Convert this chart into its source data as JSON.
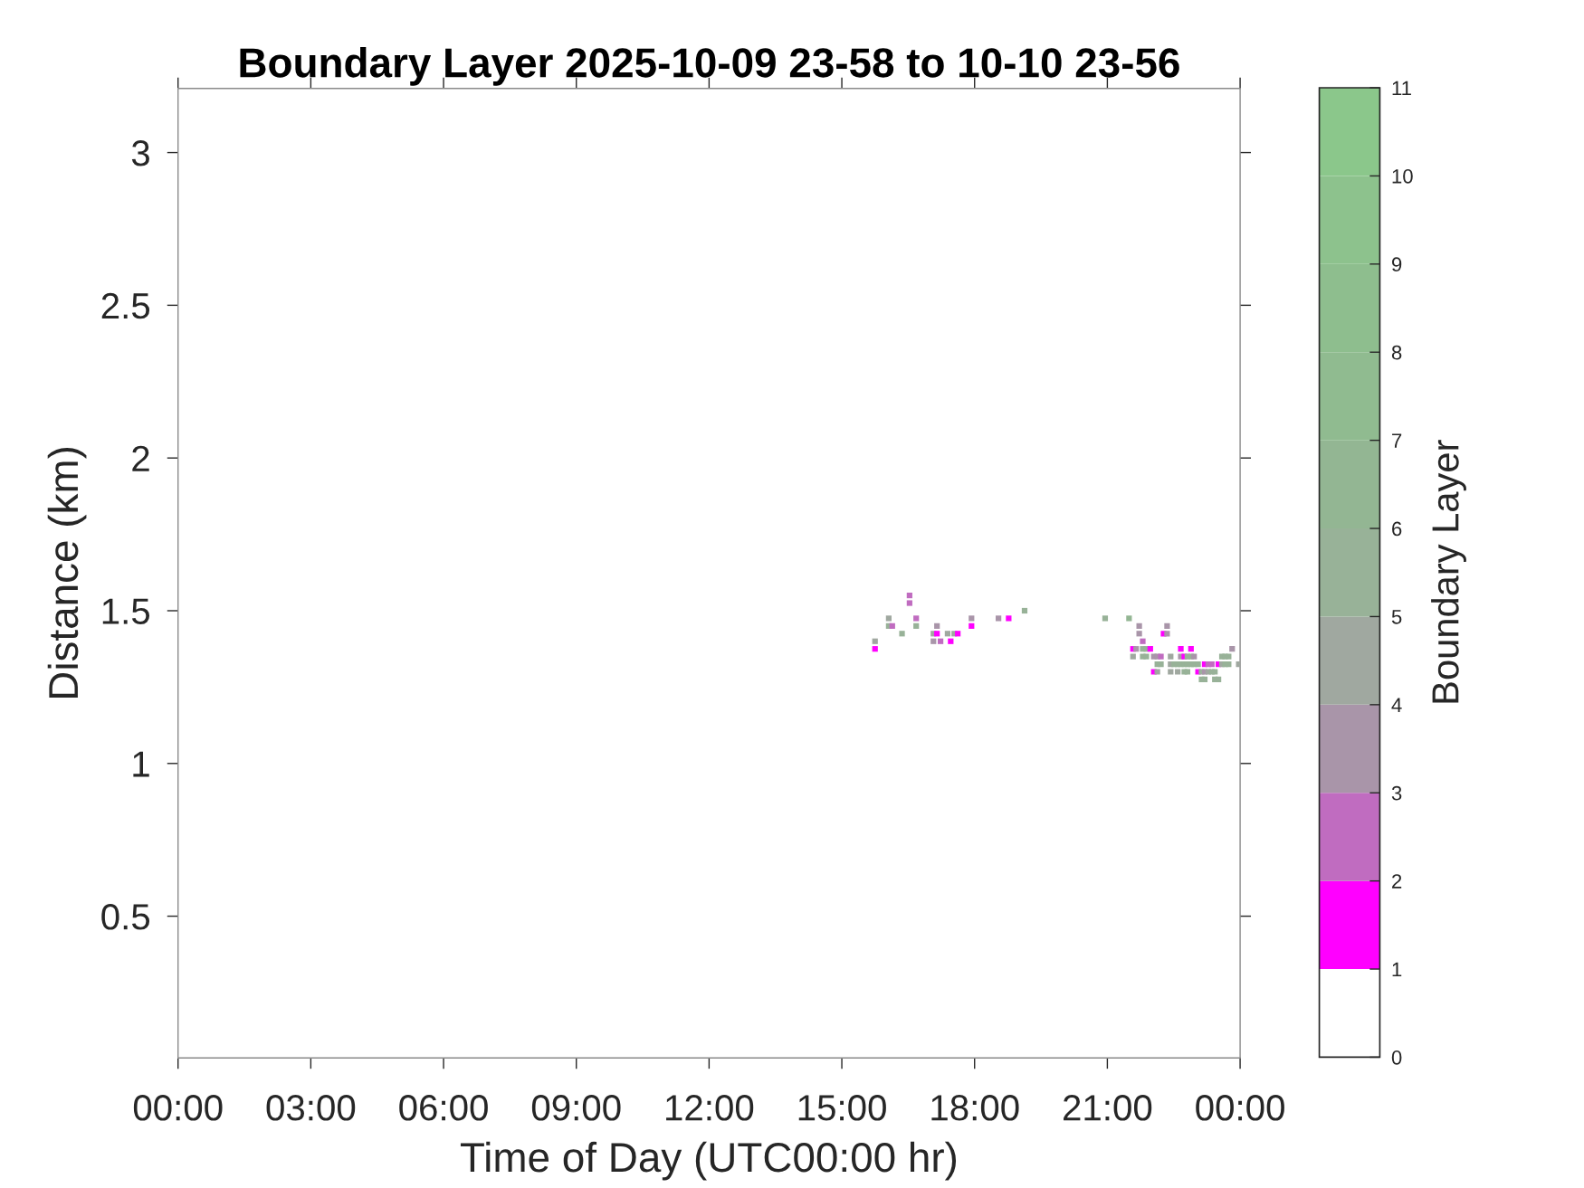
{
  "chart_data": {
    "type": "scatter",
    "title": "Boundary Layer 2025-10-09 23-58 to 10-10 23-56",
    "xlabel": "Time of Day (UTC00:00 hr)",
    "ylabel": "Distance (km)",
    "clabel": "Boundary Layer",
    "x": [
      15.75,
      15.75,
      16.06,
      16.06,
      16.14,
      16.36,
      16.53,
      16.53,
      16.68,
      16.68,
      17.07,
      17.07,
      17.15,
      17.15,
      17.23,
      17.39,
      17.46,
      17.54,
      17.62,
      17.93,
      17.93,
      18.54,
      18.77,
      19.13,
      20.95,
      21.49,
      21.58,
      21.58,
      21.65,
      21.72,
      21.72,
      21.8,
      21.8,
      21.8,
      21.88,
      21.88,
      21.97,
      22.05,
      22.05,
      22.13,
      22.13,
      22.13,
      22.21,
      22.21,
      22.27,
      22.35,
      22.35,
      22.43,
      22.43,
      22.43,
      22.51,
      22.59,
      22.59,
      22.66,
      22.66,
      22.66,
      22.74,
      22.74,
      22.74,
      22.81,
      22.81,
      22.81,
      22.89,
      22.89,
      22.89,
      22.96,
      22.96,
      23.05,
      23.05,
      23.13,
      23.13,
      23.2,
      23.2,
      23.2,
      23.28,
      23.28,
      23.36,
      23.36,
      23.43,
      23.43,
      23.51,
      23.51,
      23.59,
      23.59,
      23.66,
      23.66,
      23.74,
      23.74,
      23.82,
      23.97
    ],
    "values": [
      1.4,
      1.375,
      1.475,
      1.45,
      1.45,
      1.425,
      1.55,
      1.525,
      1.475,
      1.45,
      1.425,
      1.4,
      1.45,
      1.425,
      1.4,
      1.425,
      1.4,
      1.425,
      1.425,
      1.475,
      1.45,
      1.475,
      1.475,
      1.5,
      1.475,
      1.475,
      1.375,
      1.35,
      1.375,
      1.45,
      1.425,
      1.4,
      1.375,
      1.35,
      1.375,
      1.35,
      1.375,
      1.35,
      1.3,
      1.35,
      1.325,
      1.3,
      1.35,
      1.325,
      1.425,
      1.45,
      1.425,
      1.35,
      1.325,
      1.3,
      1.325,
      1.325,
      1.3,
      1.375,
      1.35,
      1.325,
      1.35,
      1.325,
      1.3,
      1.35,
      1.325,
      1.3,
      1.375,
      1.35,
      1.325,
      1.35,
      1.325,
      1.325,
      1.3,
      1.3,
      1.275,
      1.325,
      1.3,
      1.275,
      1.325,
      1.3,
      1.325,
      1.3,
      1.3,
      1.275,
      1.325,
      1.275,
      1.35,
      1.325,
      1.35,
      1.325,
      1.35,
      1.325,
      1.375,
      1.325
    ],
    "cvalues": [
      4.5,
      1.5,
      4.5,
      5.5,
      2.5,
      5.5,
      2.5,
      2.5,
      2.5,
      5.5,
      4.5,
      3.5,
      3.5,
      1.5,
      2.5,
      4.5,
      1.5,
      4.5,
      1.5,
      3.5,
      1.5,
      3.5,
      1.5,
      5.5,
      5.5,
      6.5,
      1.5,
      4.5,
      3.5,
      3.5,
      3.5,
      2.5,
      5.5,
      5.5,
      5.5,
      5.5,
      1.5,
      3.5,
      1.5,
      3.5,
      5.5,
      4.5,
      2.5,
      5.5,
      1.5,
      3.5,
      3.5,
      4.5,
      4.5,
      4.5,
      5.5,
      5.5,
      4.5,
      1.5,
      3.5,
      5.5,
      1.5,
      5.5,
      5.5,
      5.5,
      5.5,
      5.5,
      1.5,
      5.5,
      5.5,
      3.5,
      5.5,
      5.5,
      1.5,
      5.5,
      5.5,
      1.5,
      3.5,
      5.5,
      2.5,
      4.5,
      2.5,
      5.5,
      5.5,
      5.5,
      1.5,
      5.5,
      5.5,
      4.5,
      5.5,
      5.5,
      5.5,
      5.5,
      3.5,
      4.5
    ],
    "marker": "square",
    "xlim": [
      0,
      24
    ],
    "ylim": [
      0.036,
      3.21
    ],
    "xticks": [
      {
        "value": 0,
        "label": "00:00"
      },
      {
        "value": 3,
        "label": "03:00"
      },
      {
        "value": 6,
        "label": "06:00"
      },
      {
        "value": 9,
        "label": "09:00"
      },
      {
        "value": 12,
        "label": "12:00"
      },
      {
        "value": 15,
        "label": "15:00"
      },
      {
        "value": 18,
        "label": "18:00"
      },
      {
        "value": 21,
        "label": "21:00"
      },
      {
        "value": 24,
        "label": "00:00"
      }
    ],
    "yticks": [
      0.5,
      1,
      1.5,
      2,
      2.5,
      3
    ],
    "clim": [
      0,
      11
    ],
    "cticks": [
      0,
      1,
      2,
      3,
      4,
      5,
      6,
      7,
      8,
      9,
      10,
      11
    ]
  }
}
